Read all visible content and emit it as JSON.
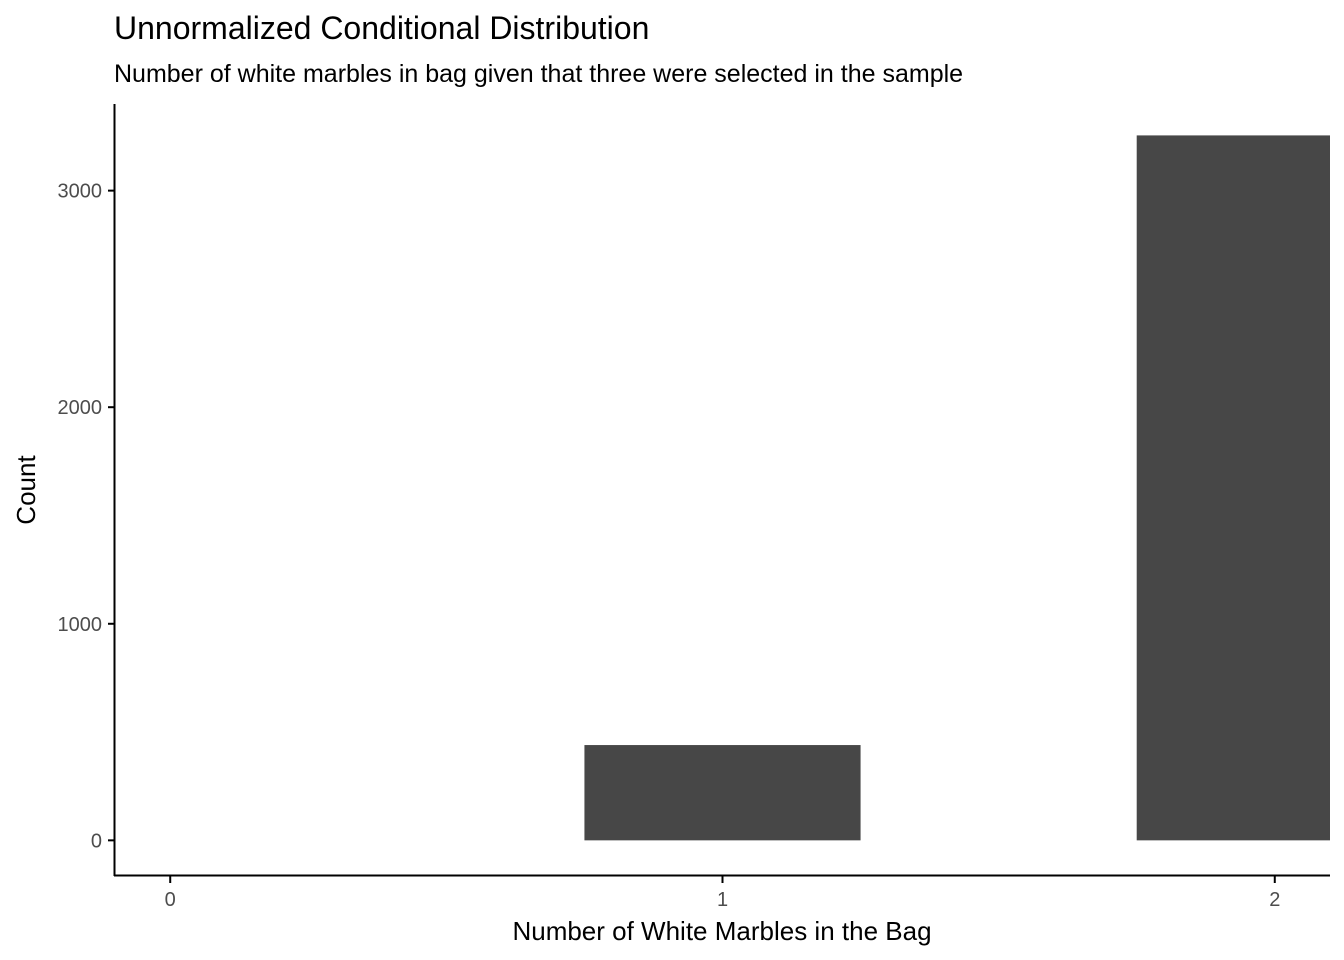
{
  "chart_data": {
    "type": "bar",
    "title": "Unnormalized Conditional Distribution",
    "subtitle": "Number of white marbles in bag given that three were selected in the sample",
    "xlabel": "Number of White Marbles in the Bag",
    "ylabel": "Count",
    "categories": [
      "0",
      "1",
      "2"
    ],
    "x": [
      0,
      1,
      2
    ],
    "values": [
      0,
      440,
      3255
    ],
    "x_ticks": [
      "0",
      "1",
      "2"
    ],
    "y_ticks": [
      "0",
      "1000",
      "2000",
      "3000"
    ],
    "ylim": [
      -160,
      3400
    ],
    "xlim": [
      -0.1,
      2.1
    ],
    "bar_width": 0.5,
    "grid": false,
    "colors": {
      "bar": "#474747",
      "axis": "#000000",
      "tick_label": "#4d4d4d"
    }
  }
}
